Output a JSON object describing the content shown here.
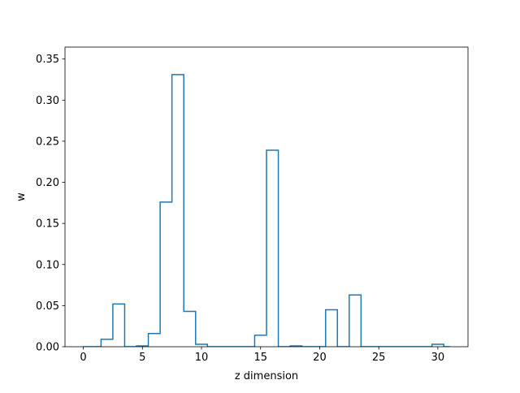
{
  "chart_data": {
    "type": "step",
    "xlabel": "z dimension",
    "ylabel": "w",
    "xlim": [
      -1.55,
      32.55
    ],
    "ylim": [
      0,
      0.3645
    ],
    "x_ticks": [
      0,
      5,
      10,
      15,
      20,
      25,
      30
    ],
    "y_ticks": [
      0.0,
      0.05,
      0.1,
      0.15,
      0.2,
      0.25,
      0.3,
      0.35
    ],
    "x": [
      0,
      1,
      2,
      3,
      4,
      5,
      6,
      7,
      8,
      9,
      10,
      11,
      12,
      13,
      14,
      15,
      16,
      17,
      18,
      19,
      20,
      21,
      22,
      23,
      24,
      25,
      26,
      27,
      28,
      29,
      30,
      31
    ],
    "values": [
      0.0,
      0.0,
      0.009,
      0.052,
      0.0,
      0.001,
      0.016,
      0.176,
      0.331,
      0.043,
      0.003,
      0.0,
      0.0,
      0.0,
      0.0,
      0.014,
      0.239,
      0.0,
      0.001,
      0.0,
      0.0,
      0.045,
      0.0,
      0.063,
      0.0,
      0.0,
      0.0,
      0.0,
      0.0,
      0.0,
      0.003,
      0.0
    ],
    "step_where": "mid",
    "line_color": "#1f77b4",
    "grid": false
  }
}
